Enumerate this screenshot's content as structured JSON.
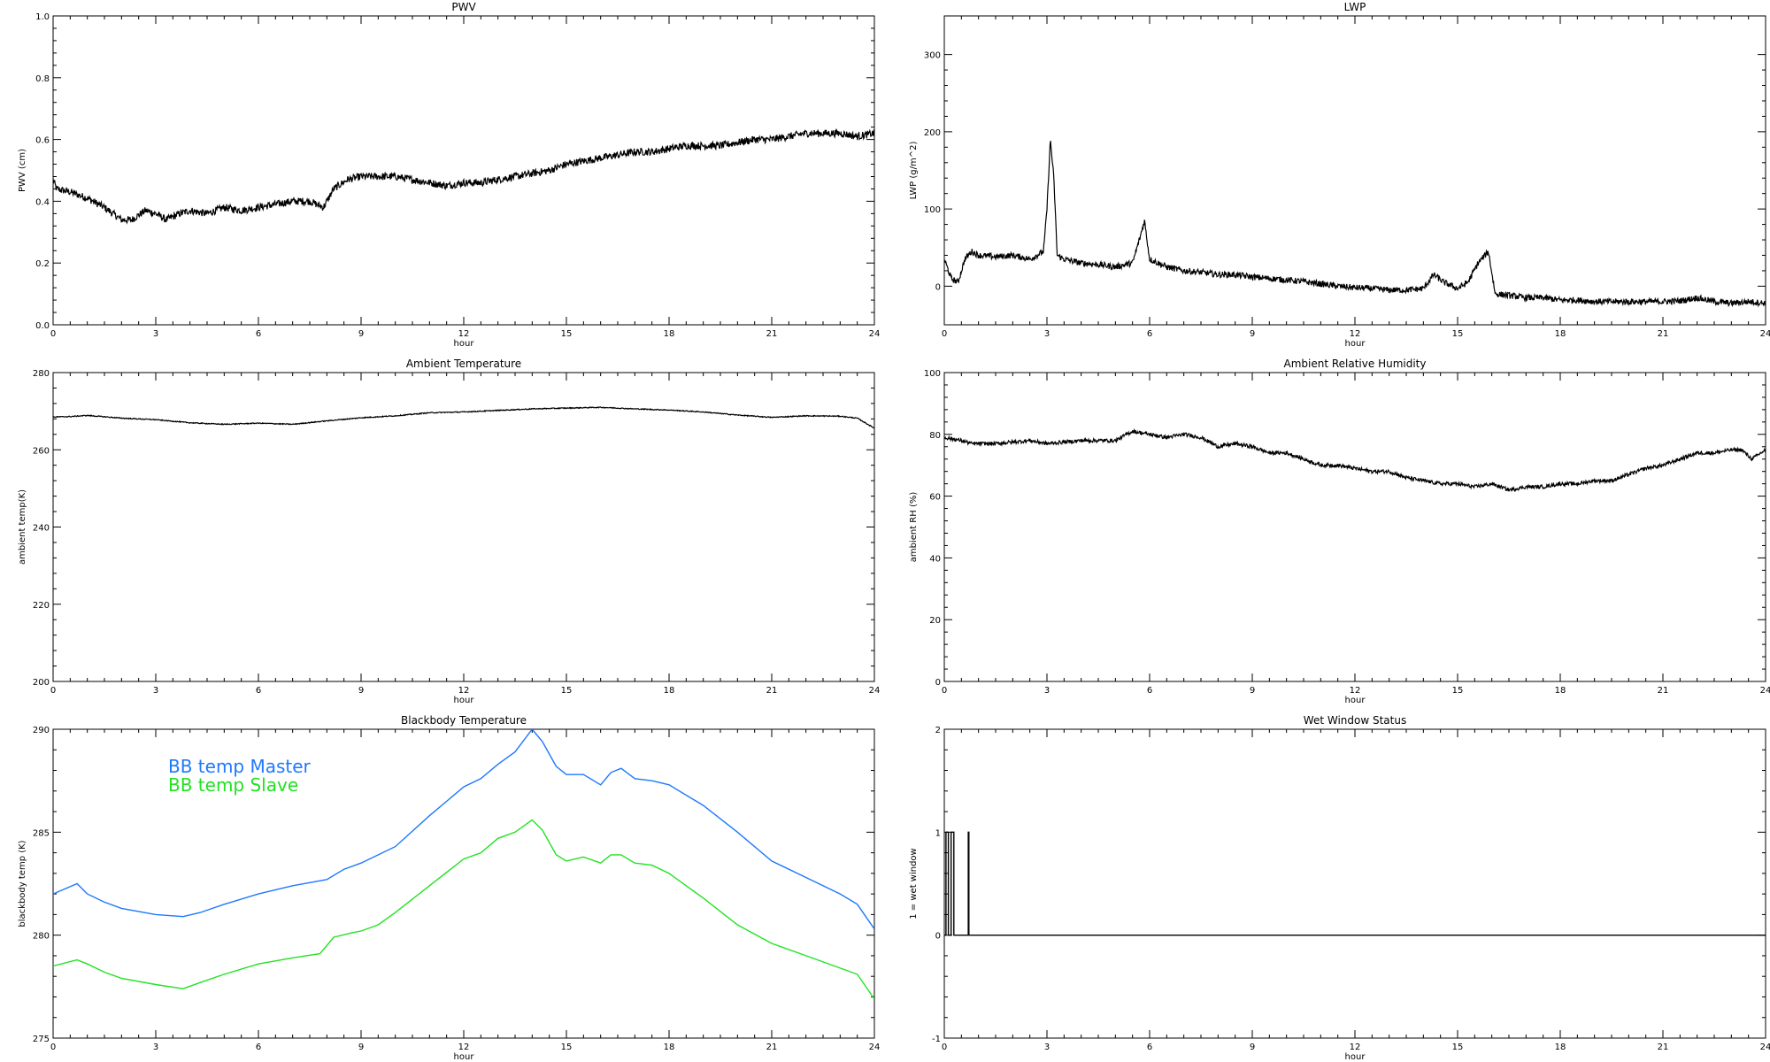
{
  "figure": {
    "charts": [
      {
        "id": "pwv",
        "type": "line",
        "title": "PWV",
        "xlabel": "hour",
        "ylabel": "PWV (cm)",
        "xlim": [
          0,
          24
        ],
        "ylim": [
          0.0,
          1.0
        ],
        "xticks": [
          0,
          3,
          6,
          9,
          12,
          15,
          18,
          21,
          24
        ],
        "yticks": [
          0.0,
          0.2,
          0.4,
          0.6,
          0.8,
          1.0
        ],
        "ytick_labels": [
          "0.0",
          "0.2",
          "0.4",
          "0.6",
          "0.8",
          "1.0"
        ],
        "noise": 0.012,
        "series": [
          {
            "color": "#000000",
            "x": [
              0,
              0.1,
              0.5,
              1.0,
              1.5,
              2.0,
              2.3,
              2.7,
              3.0,
              3.3,
              3.7,
              4.0,
              4.5,
              5.0,
              5.5,
              6.0,
              6.5,
              7.0,
              7.5,
              7.9,
              8.2,
              8.6,
              9.0,
              9.5,
              10.0,
              10.5,
              11.0,
              11.5,
              12.0,
              12.5,
              13.0,
              13.5,
              14.0,
              14.5,
              15.0,
              15.5,
              16.0,
              16.5,
              17.0,
              17.5,
              18.0,
              18.5,
              19.0,
              19.5,
              20.0,
              20.5,
              21.0,
              21.5,
              22.0,
              22.5,
              23.0,
              23.5,
              24.0
            ],
            "y": [
              0.47,
              0.44,
              0.43,
              0.41,
              0.38,
              0.34,
              0.34,
              0.37,
              0.36,
              0.34,
              0.36,
              0.37,
              0.36,
              0.38,
              0.37,
              0.38,
              0.39,
              0.4,
              0.4,
              0.38,
              0.44,
              0.47,
              0.48,
              0.48,
              0.48,
              0.47,
              0.46,
              0.45,
              0.46,
              0.46,
              0.47,
              0.48,
              0.49,
              0.5,
              0.52,
              0.53,
              0.54,
              0.55,
              0.56,
              0.56,
              0.57,
              0.58,
              0.58,
              0.58,
              0.59,
              0.6,
              0.6,
              0.61,
              0.62,
              0.62,
              0.62,
              0.61,
              0.62
            ]
          }
        ]
      },
      {
        "id": "lwp",
        "type": "line",
        "title": "LWP",
        "xlabel": "hour",
        "ylabel": "LWP (g/m^2)",
        "xlim": [
          0,
          24
        ],
        "ylim": [
          -50,
          350
        ],
        "xticks": [
          0,
          3,
          6,
          9,
          12,
          15,
          18,
          21,
          24
        ],
        "yticks": [
          0,
          100,
          200,
          300
        ],
        "ytick_labels": [
          "0",
          "100",
          "200",
          "300"
        ],
        "noise": 4,
        "series": [
          {
            "color": "#000000",
            "x": [
              0,
              0.2,
              0.4,
              0.6,
              0.8,
              1.0,
              1.5,
              2.0,
              2.5,
              2.9,
              3.0,
              3.1,
              3.2,
              3.3,
              3.5,
              4.0,
              4.5,
              5.0,
              5.5,
              5.7,
              5.85,
              6.0,
              6.5,
              7.0,
              7.5,
              8.0,
              8.5,
              9.0,
              9.5,
              10.0,
              10.5,
              11.0,
              11.5,
              12.0,
              12.5,
              13.0,
              13.5,
              14.0,
              14.3,
              14.6,
              15.0,
              15.3,
              15.6,
              15.9,
              16.1,
              16.5,
              17.0,
              17.5,
              18.0,
              18.5,
              19.0,
              19.5,
              20.0,
              20.5,
              21.0,
              21.5,
              22.0,
              22.5,
              23.0,
              23.5,
              24.0
            ],
            "y": [
              35,
              10,
              5,
              35,
              45,
              40,
              38,
              40,
              35,
              45,
              100,
              190,
              140,
              40,
              35,
              30,
              28,
              25,
              30,
              60,
              85,
              35,
              25,
              20,
              18,
              15,
              15,
              12,
              10,
              8,
              6,
              3,
              0,
              -2,
              -3,
              -5,
              -5,
              -3,
              15,
              5,
              -3,
              5,
              30,
              45,
              -10,
              -12,
              -15,
              -15,
              -18,
              -18,
              -20,
              -20,
              -20,
              -20,
              -20,
              -19,
              -15,
              -20,
              -22,
              -20,
              -22
            ]
          }
        ]
      },
      {
        "id": "ambient-temp",
        "type": "line",
        "title": "Ambient Temperature",
        "xlabel": "hour",
        "ylabel": "ambient temp(K)",
        "xlim": [
          0,
          24
        ],
        "ylim": [
          200,
          280
        ],
        "xticks": [
          0,
          3,
          6,
          9,
          12,
          15,
          18,
          21,
          24
        ],
        "yticks": [
          200,
          220,
          240,
          260,
          280
        ],
        "ytick_labels": [
          "200",
          "220",
          "240",
          "260",
          "280"
        ],
        "noise": 0.12,
        "series": [
          {
            "color": "#000000",
            "x": [
              0,
              0.5,
              1.0,
              2.0,
              3.0,
              4.0,
              5.0,
              6.0,
              7.0,
              8.0,
              9.0,
              10.0,
              11.0,
              12.0,
              13.0,
              14.0,
              15.0,
              16.0,
              17.0,
              18.0,
              19.0,
              20.0,
              21.0,
              22.0,
              23.0,
              23.5,
              24.0
            ],
            "y": [
              268.5,
              268.6,
              268.9,
              268.2,
              267.8,
              267.0,
              266.6,
              266.9,
              266.6,
              267.5,
              268.3,
              268.8,
              269.6,
              269.8,
              270.2,
              270.6,
              270.8,
              271.0,
              270.6,
              270.3,
              269.8,
              269.0,
              268.4,
              268.8,
              268.7,
              268.2,
              265.6
            ]
          }
        ]
      },
      {
        "id": "ambient-rh",
        "type": "line",
        "title": "Ambient Relative Humidity",
        "xlabel": "hour",
        "ylabel": "ambient RH (%)",
        "xlim": [
          0,
          24
        ],
        "ylim": [
          0,
          100
        ],
        "xticks": [
          0,
          3,
          6,
          9,
          12,
          15,
          18,
          21,
          24
        ],
        "yticks": [
          0,
          20,
          40,
          60,
          80,
          100
        ],
        "ytick_labels": [
          "0",
          "20",
          "40",
          "60",
          "80",
          "100"
        ],
        "noise": 0.6,
        "series": [
          {
            "color": "#000000",
            "x": [
              0,
              0.5,
              0.8,
              1.5,
              2.5,
              3.0,
              4.0,
              5.0,
              5.5,
              6.0,
              6.5,
              7.0,
              7.5,
              8.0,
              8.5,
              9.0,
              9.5,
              10.0,
              10.5,
              11.0,
              11.5,
              12.0,
              12.5,
              13.0,
              13.5,
              14.0,
              14.5,
              15.0,
              15.5,
              16.0,
              16.5,
              17.0,
              17.5,
              18.0,
              18.5,
              19.0,
              19.5,
              20.0,
              20.5,
              21.0,
              21.5,
              22.0,
              22.5,
              23.0,
              23.3,
              23.6,
              24.0
            ],
            "y": [
              79,
              78,
              77,
              77,
              78,
              77,
              78,
              78,
              81,
              80,
              79,
              80,
              79,
              76,
              77,
              76,
              74,
              74,
              72,
              70,
              70,
              69,
              68,
              68,
              66,
              65,
              64,
              64,
              63,
              64,
              62,
              63,
              63,
              64,
              64,
              65,
              65,
              67,
              69,
              70,
              72,
              74,
              74,
              75,
              75,
              72,
              75
            ]
          }
        ]
      },
      {
        "id": "blackbody-temp",
        "type": "line",
        "title": "Blackbody Temperature",
        "xlabel": "hour",
        "ylabel": "blackbody temp (K)",
        "xlim": [
          0,
          24
        ],
        "ylim": [
          275,
          290
        ],
        "xticks": [
          0,
          3,
          6,
          9,
          12,
          15,
          18,
          21,
          24
        ],
        "yticks": [
          275,
          280,
          285,
          290
        ],
        "ytick_labels": [
          "275",
          "280",
          "285",
          "290"
        ],
        "noise": 0,
        "legend": {
          "position": "upper-left",
          "entries": [
            {
              "label": "BB temp Master",
              "color": "#1e78ff"
            },
            {
              "label": "BB temp Slave",
              "color": "#22e222"
            }
          ]
        },
        "series": [
          {
            "name": "BB temp Master",
            "color": "#1e78ff",
            "x": [
              0,
              0.7,
              1.0,
              1.5,
              2.0,
              3.0,
              3.8,
              4.3,
              5.0,
              6.0,
              7.0,
              8.0,
              8.5,
              9.0,
              10.0,
              11.0,
              12.0,
              12.5,
              13.0,
              13.5,
              14.0,
              14.3,
              14.7,
              15.0,
              15.5,
              16.0,
              16.3,
              16.6,
              17.0,
              17.5,
              18.0,
              19.0,
              20.0,
              21.0,
              22.0,
              23.0,
              23.5,
              24.0
            ],
            "y": [
              282.0,
              282.5,
              282.0,
              281.6,
              281.3,
              281.0,
              280.9,
              281.1,
              281.5,
              282.0,
              282.4,
              282.7,
              283.2,
              283.5,
              284.3,
              285.8,
              287.2,
              287.6,
              288.3,
              288.9,
              290.0,
              289.4,
              288.2,
              287.8,
              287.8,
              287.3,
              287.9,
              288.1,
              287.6,
              287.5,
              287.3,
              286.3,
              285.0,
              283.6,
              282.8,
              282.0,
              281.5,
              280.3
            ]
          },
          {
            "name": "BB temp Slave",
            "color": "#22e222",
            "x": [
              0,
              0.7,
              1.0,
              1.5,
              2.0,
              3.0,
              3.8,
              4.3,
              5.0,
              6.0,
              7.0,
              7.8,
              8.2,
              8.7,
              9.0,
              9.5,
              10.0,
              11.0,
              12.0,
              12.5,
              13.0,
              13.5,
              14.0,
              14.3,
              14.7,
              15.0,
              15.5,
              16.0,
              16.3,
              16.6,
              17.0,
              17.5,
              18.0,
              19.0,
              20.0,
              21.0,
              22.0,
              23.0,
              23.5,
              24.0
            ],
            "y": [
              278.5,
              278.8,
              278.6,
              278.2,
              277.9,
              277.6,
              277.4,
              277.7,
              278.1,
              278.6,
              278.9,
              279.1,
              279.9,
              280.1,
              280.2,
              280.5,
              281.1,
              282.4,
              283.7,
              284.0,
              284.7,
              285.0,
              285.6,
              285.1,
              283.9,
              283.6,
              283.8,
              283.5,
              283.9,
              283.9,
              283.5,
              283.4,
              283.0,
              281.8,
              280.5,
              279.6,
              279.0,
              278.4,
              278.1,
              276.9
            ]
          }
        ]
      },
      {
        "id": "wet-window",
        "type": "line",
        "title": "Wet Window Status",
        "xlabel": "hour",
        "ylabel": "1 = wet window",
        "xlim": [
          0,
          24
        ],
        "ylim": [
          -1,
          2
        ],
        "xticks": [
          0,
          3,
          6,
          9,
          12,
          15,
          18,
          21,
          24
        ],
        "yticks": [
          -1,
          0,
          1,
          2
        ],
        "ytick_labels": [
          "-1",
          "0",
          "1",
          "2"
        ],
        "noise": 0,
        "series": [
          {
            "color": "#000000",
            "x": [
              0,
              0.05,
              0.05,
              0.12,
              0.12,
              0.2,
              0.2,
              0.28,
              0.28,
              0.7,
              0.7,
              0.72,
              0.72,
              24
            ],
            "y": [
              0,
              0,
              1,
              1,
              0,
              0,
              1,
              1,
              0,
              0,
              1,
              1,
              0,
              0
            ]
          }
        ]
      }
    ]
  }
}
